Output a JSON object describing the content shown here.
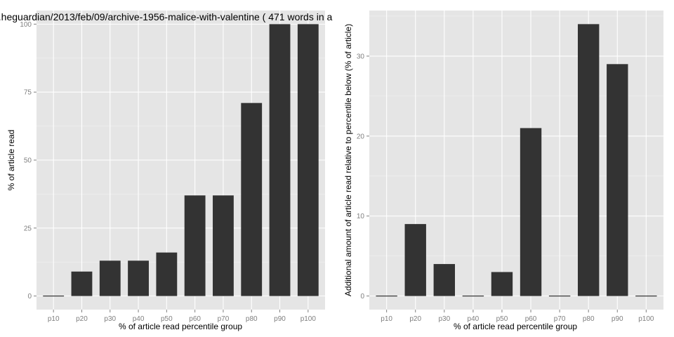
{
  "chart_data": [
    {
      "type": "bar",
      "title": "...heguardian/2013/feb/09/archive-1956-malice-with-valentine ( 471 words in a",
      "xlabel": "% of article read percentile group",
      "ylabel": "% of article read",
      "categories": [
        "p10",
        "p20",
        "p30",
        "p40",
        "p50",
        "p60",
        "p70",
        "p80",
        "p90",
        "p100"
      ],
      "values": [
        0,
        9,
        13,
        13,
        16,
        37,
        37,
        71,
        100,
        100
      ],
      "ylim": [
        -5,
        105
      ],
      "yticks": [
        0,
        25,
        50,
        75,
        100
      ],
      "grid": true,
      "colors": {
        "bar": "#333333",
        "panel": "#e5e5e5",
        "grid": "#ffffff"
      }
    },
    {
      "type": "bar",
      "title": "",
      "xlabel": "% of article read percentile group",
      "ylabel": "Additional amount of article read relative to percentile below (% of article)",
      "categories": [
        "p10",
        "p20",
        "p30",
        "p40",
        "p50",
        "p60",
        "p70",
        "p80",
        "p90",
        "p100"
      ],
      "values": [
        0,
        9,
        4,
        0,
        3,
        21,
        0,
        34,
        29,
        0
      ],
      "ylim": [
        -1.7,
        35.7
      ],
      "yticks": [
        0,
        10,
        20,
        30
      ],
      "grid": true,
      "colors": {
        "bar": "#333333",
        "panel": "#e5e5e5",
        "grid": "#ffffff"
      }
    }
  ]
}
